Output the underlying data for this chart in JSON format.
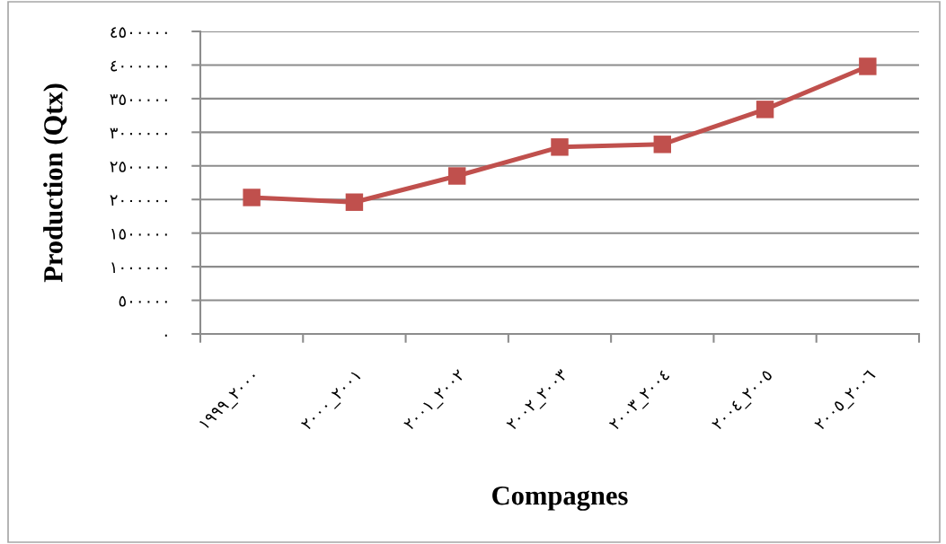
{
  "chart_data": {
    "type": "line",
    "xlabel": "Compagnes",
    "ylabel": "Production (Qtx)",
    "categories": [
      "١٩٩٩_٢٠٠٠",
      "٢٠٠٠_٢٠٠١",
      "٢٠٠١_٢٠٠٢",
      "٢٠٠٢_٢٠٠٣",
      "٢٠٠٣_٢٠٠٤",
      "٢٠٠٤_٢٠٠٥",
      "٢٠٠٥_٢٠٠٦"
    ],
    "series": [
      {
        "color": "#c0504d",
        "values": [
          2030000,
          1960000,
          2350000,
          2780000,
          2820000,
          3340000,
          3980000
        ]
      }
    ],
    "ylim": [
      0,
      4500000
    ],
    "yticks": [
      {
        "value": 0,
        "label": "٠"
      },
      {
        "value": 500000,
        "label": "٥٠٠٠٠٠"
      },
      {
        "value": 1000000,
        "label": "١٠٠٠٠٠٠"
      },
      {
        "value": 1500000,
        "label": "١٥٠٠٠٠٠"
      },
      {
        "value": 2000000,
        "label": "٢٠٠٠٠٠٠"
      },
      {
        "value": 2500000,
        "label": "٢٥٠٠٠٠٠"
      },
      {
        "value": 3000000,
        "label": "٣٠٠٠٠٠٠"
      },
      {
        "value": 3500000,
        "label": "٣٥٠٠٠٠٠"
      },
      {
        "value": 4000000,
        "label": "٤٠٠٠٠٠٠"
      },
      {
        "value": 4500000,
        "label": "٤٥٠٠٠٠٠"
      }
    ],
    "grid": "y",
    "marker": "square",
    "line_style": "solid"
  }
}
